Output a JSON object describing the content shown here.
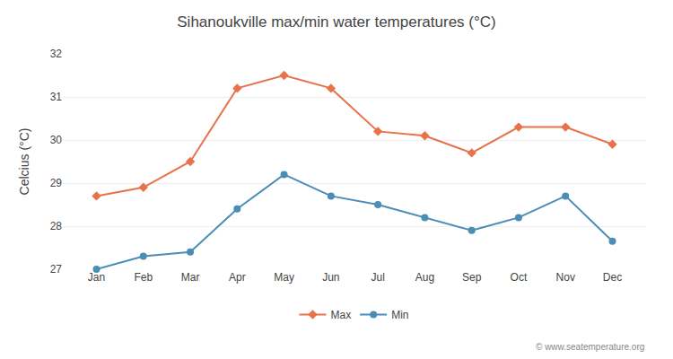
{
  "chart_data": {
    "type": "line",
    "title": "Sihanoukville max/min water temperatures (°C)",
    "y_label": "Celcius (°C)",
    "annotations": [
      "© www.seatemperature.org"
    ],
    "categories": [
      "Jan",
      "Feb",
      "Mar",
      "Apr",
      "May",
      "Jun",
      "Jul",
      "Aug",
      "Sep",
      "Oct",
      "Nov",
      "Dec"
    ],
    "series": [
      {
        "name": "Max",
        "color": "#e8724a",
        "marker": "diamond",
        "values": [
          28.7,
          28.9,
          29.5,
          31.2,
          31.5,
          31.2,
          30.2,
          30.1,
          29.7,
          30.3,
          30.3,
          29.9
        ]
      },
      {
        "name": "Min",
        "color": "#4a8db5",
        "marker": "circle",
        "values": [
          27.0,
          27.3,
          27.4,
          28.4,
          29.2,
          28.7,
          28.5,
          28.2,
          27.9,
          28.2,
          28.7,
          27.65
        ]
      }
    ],
    "ylim": [
      27,
      32
    ],
    "yticks": [
      27,
      28,
      29,
      30,
      31,
      32
    ],
    "grid": true,
    "legend": "bottom"
  }
}
